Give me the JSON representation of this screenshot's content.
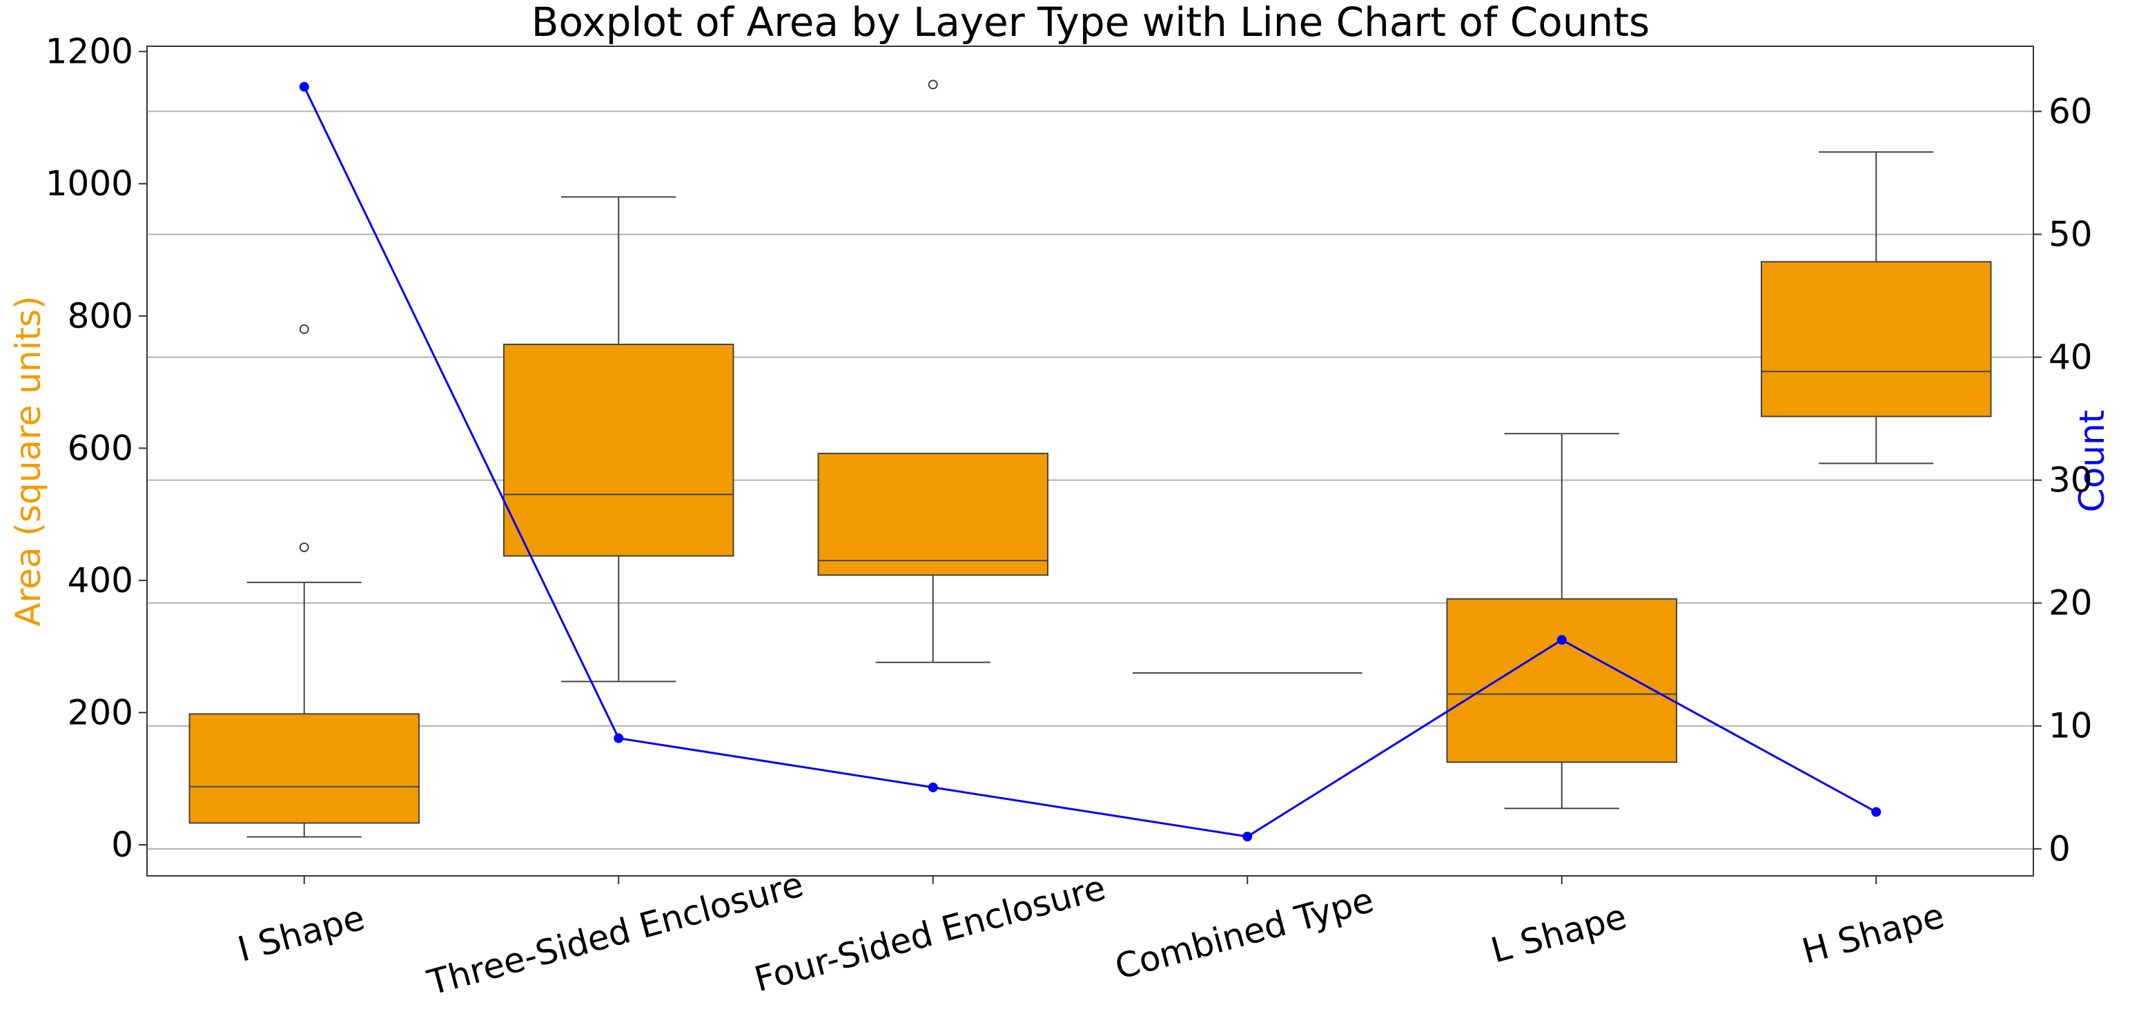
{
  "chart_data": {
    "type": "box",
    "title": "Boxplot of Area by Layer Type with Line Chart of Counts",
    "ylabel": "Area (square units)",
    "y2label": "Count",
    "categories": [
      "I Shape",
      "Three-Sided Enclosure",
      "Four-Sided Enclosure",
      "Combined Type",
      "L Shape",
      "H Shape"
    ],
    "boxes": [
      {
        "whislo": 12,
        "q1": 33,
        "med": 88,
        "q3": 198,
        "whishi": 397,
        "fliers": [
          450,
          780
        ]
      },
      {
        "whislo": 247,
        "q1": 437,
        "med": 530,
        "q3": 757,
        "whishi": 980,
        "fliers": []
      },
      {
        "whislo": 276,
        "q1": 408,
        "med": 430,
        "q3": 592,
        "whishi": 592,
        "fliers": [
          1150
        ]
      },
      {
        "whislo": 260,
        "q1": 260,
        "med": 260,
        "q3": 260,
        "whishi": 260,
        "fliers": []
      },
      {
        "whislo": 55,
        "q1": 125,
        "med": 228,
        "q3": 372,
        "whishi": 622,
        "fliers": []
      },
      {
        "whislo": 577,
        "q1": 648,
        "med": 716,
        "q3": 882,
        "whishi": 1048,
        "fliers": []
      }
    ],
    "box_color": "#f29b00",
    "series": [
      {
        "color": "#0000ff",
        "axis": "y2",
        "values": [
          62,
          9,
          5,
          1,
          17,
          3
        ]
      }
    ],
    "ylim": [
      -47,
      1208
    ],
    "yticks": [
      0,
      200,
      400,
      600,
      800,
      1000,
      1200
    ],
    "y2lim": [
      -2.2,
      65.3
    ],
    "y2ticks": [
      0,
      10,
      20,
      30,
      40,
      50,
      60
    ],
    "grid": true,
    "ylabel_color": "#f29b00",
    "y2label_color": "#0000ff"
  }
}
